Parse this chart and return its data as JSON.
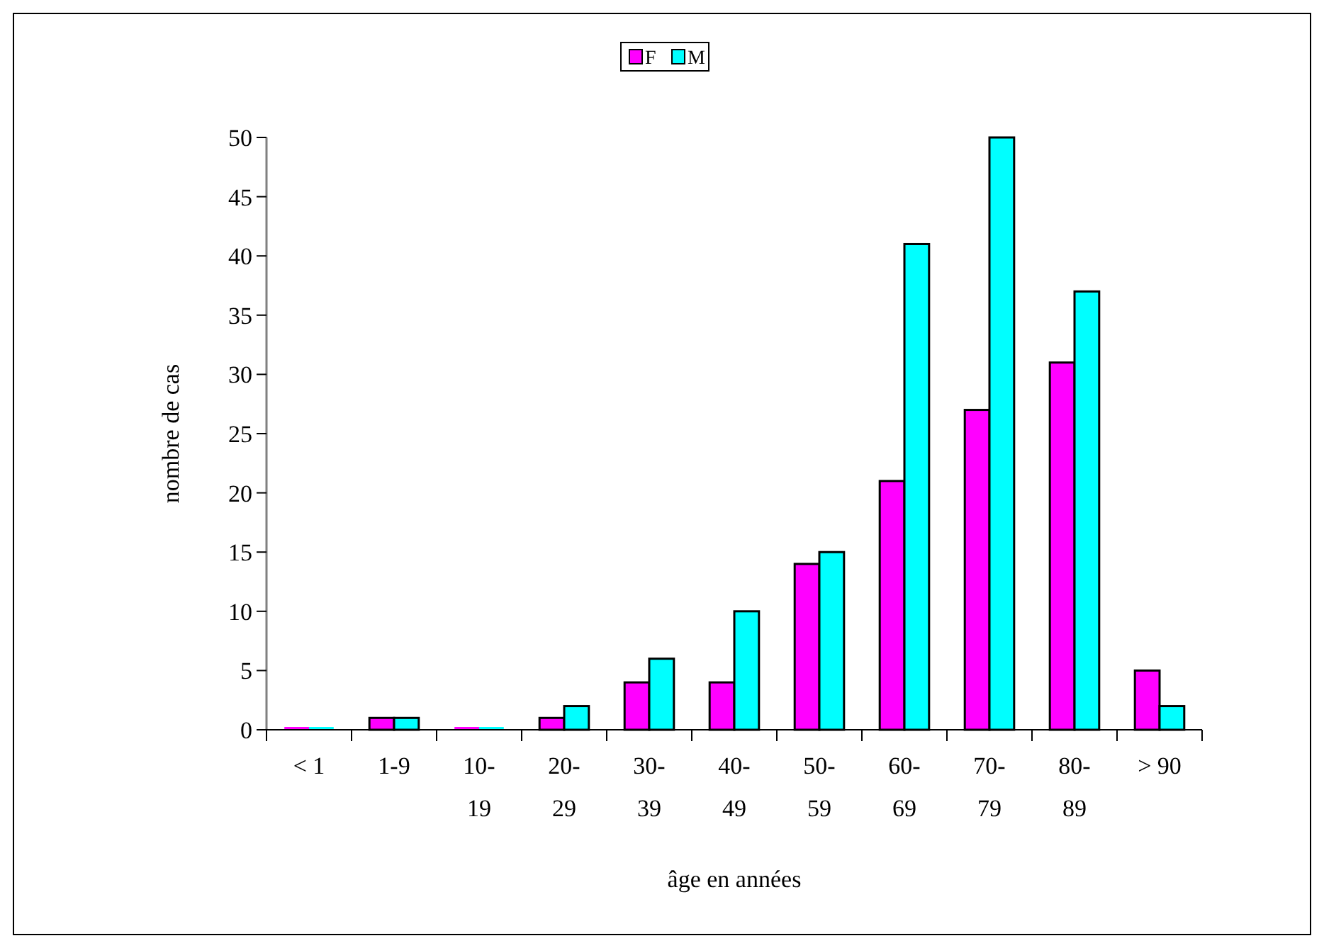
{
  "chart_data": {
    "type": "bar",
    "xlabel": "âge en années",
    "ylabel": "nombre de cas",
    "categories": [
      "< 1",
      "1-9",
      "10-19",
      "20-29",
      "30-39",
      "40-49",
      "50-59",
      "60-69",
      "70-79",
      "80-89",
      "> 90"
    ],
    "series": [
      {
        "name": "F",
        "color": "#ff00ff",
        "values": [
          0,
          1,
          0,
          1,
          4,
          4,
          14,
          21,
          27,
          31,
          5
        ]
      },
      {
        "name": "M",
        "color": "#00ffff",
        "values": [
          0,
          1,
          0,
          2,
          6,
          10,
          15,
          41,
          50,
          37,
          2
        ]
      }
    ],
    "ylim": [
      0,
      50
    ],
    "yticks": [
      0,
      5,
      10,
      15,
      20,
      25,
      30,
      35,
      40,
      45,
      50
    ],
    "grid": false,
    "legend": "top"
  }
}
